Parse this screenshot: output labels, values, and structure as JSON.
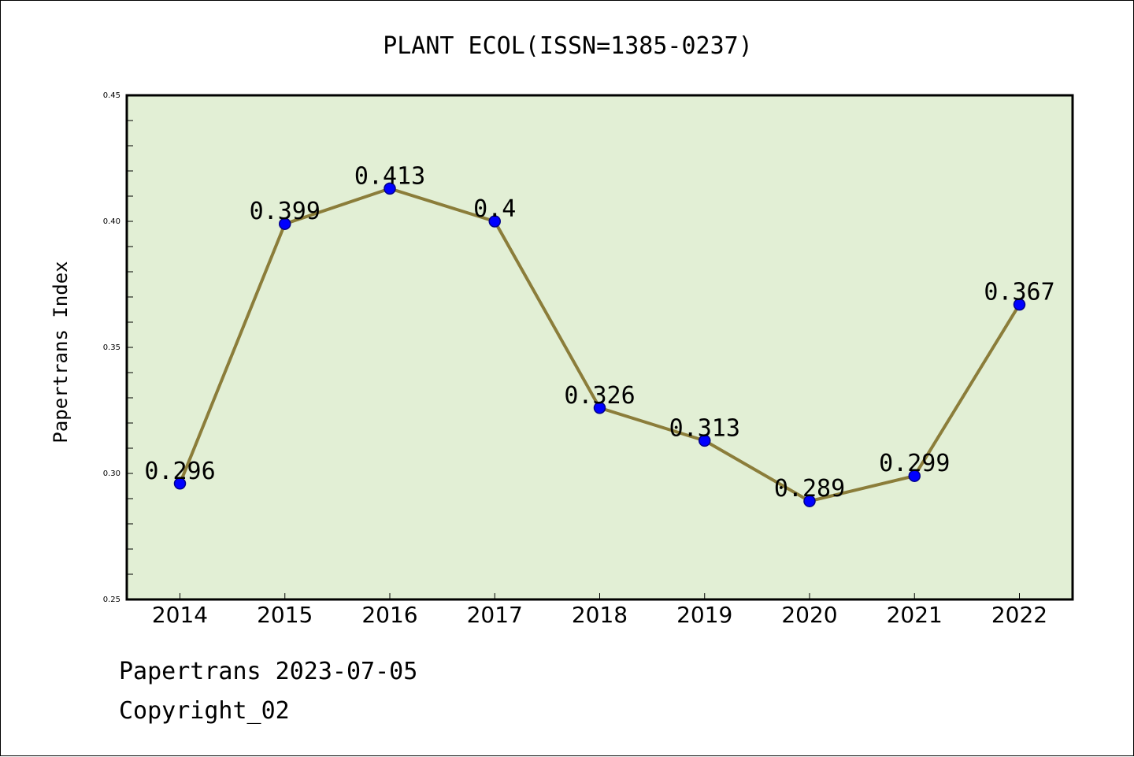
{
  "chart_data": {
    "type": "line",
    "title": "PLANT ECOL(ISSN=1385-0237)",
    "xlabel": "",
    "ylabel": "Papertrans Index",
    "categories": [
      "2014",
      "2015",
      "2016",
      "2017",
      "2018",
      "2019",
      "2020",
      "2021",
      "2022"
    ],
    "series": [
      {
        "values": [
          0.296,
          0.399,
          0.413,
          0.4,
          0.326,
          0.313,
          0.289,
          0.299,
          0.367
        ],
        "data_labels": [
          "0.296",
          "0.399",
          "0.413",
          "0.4",
          "0.326",
          "0.313",
          "0.289",
          "0.299",
          "0.367"
        ]
      }
    ],
    "ylim": [
      0.25,
      0.45
    ],
    "yticks": [
      0.25,
      0.3,
      0.35,
      0.4,
      0.45
    ],
    "ytick_labels": [
      "0.25",
      "0.30",
      "0.35",
      "0.40",
      "0.45"
    ],
    "grid": false,
    "legend": "none",
    "colors": {
      "plot_background": "#e2efd5",
      "line": "#8b7d3a",
      "marker": "#0000ff",
      "marker_edge": "#00008b"
    }
  },
  "footer": {
    "line1": "Papertrans 2023-07-05",
    "line2": "Copyright_02"
  }
}
